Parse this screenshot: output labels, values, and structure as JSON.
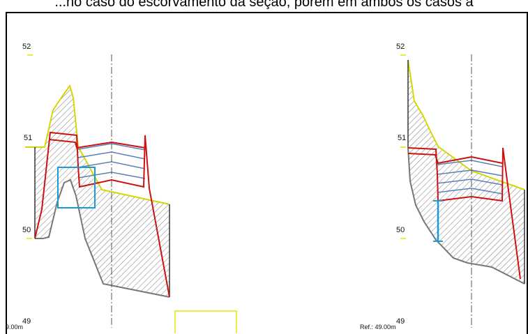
{
  "caption": "...no caso do escorvamento da seção, porém em ambos os casos a",
  "left_section": {
    "elevation_labels": [
      "52",
      "51",
      "50",
      "49"
    ],
    "reference_label": "9.00m"
  },
  "right_section": {
    "elevation_labels": [
      "52",
      "51",
      "50",
      "49"
    ],
    "reference_label": "Ref.: 49.00m"
  },
  "colors": {
    "terrain_line": "#d6d600",
    "channel_outline": "#cc1111",
    "water_levels": "#5b7fb5",
    "scour_line": "#777777",
    "hatch": "#555555",
    "highlight_box": "#1a9ad9",
    "axis_line": "#555555",
    "yellow_box": "#e6e600"
  }
}
